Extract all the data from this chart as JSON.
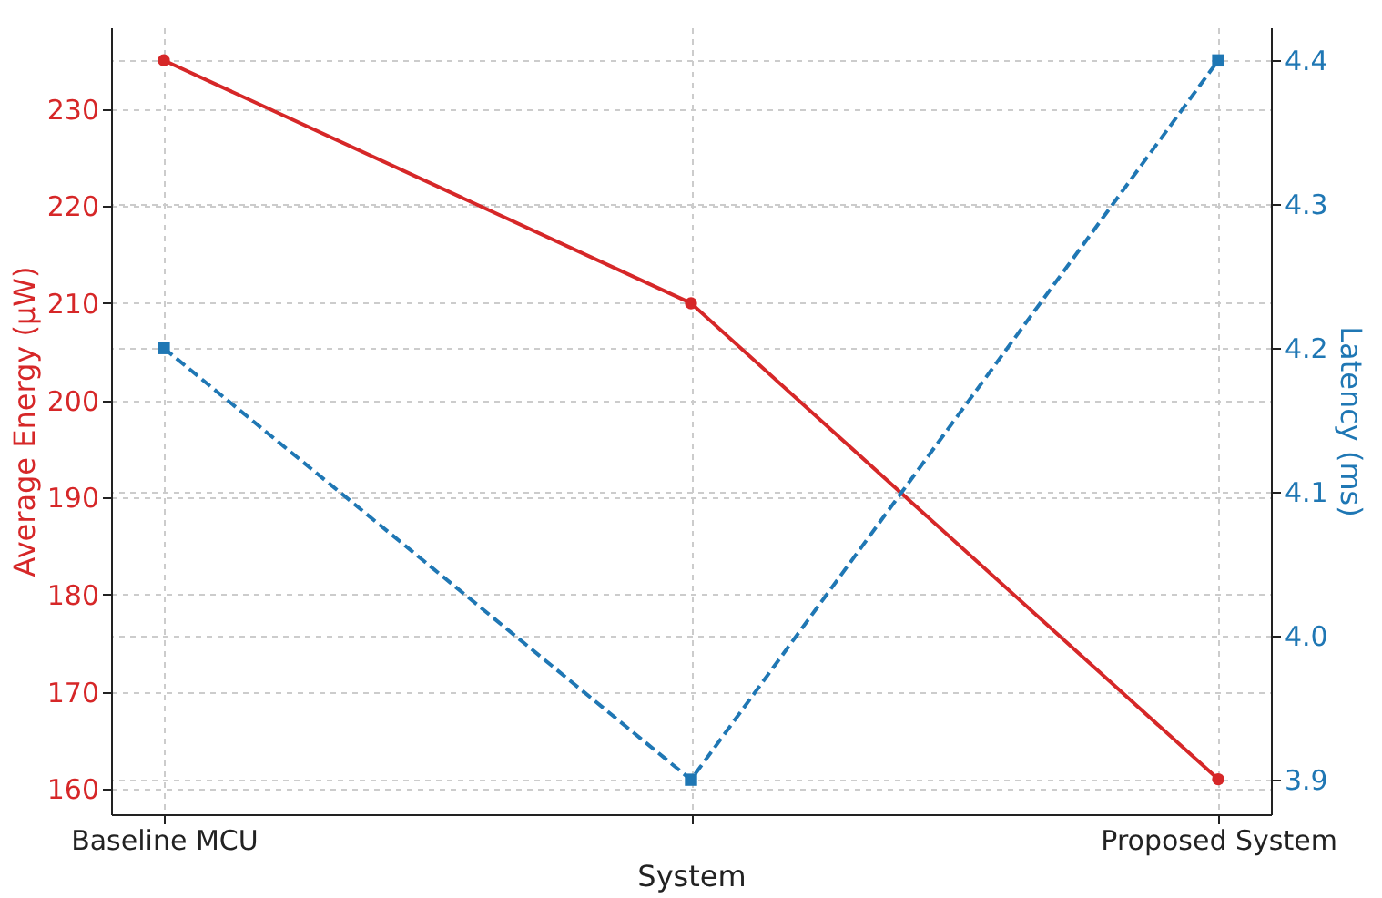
{
  "chart_data": {
    "type": "line",
    "xlabel": "System",
    "ylabel": "Average Energy (μW)",
    "y2label": "Latency (ms)",
    "categories": [
      "Baseline MCU",
      null,
      "Proposed System"
    ],
    "series": [
      {
        "color": "#d62728",
        "values": [
          235,
          210,
          161
        ],
        "marker": "circle",
        "line_style": "solid"
      },
      {
        "color": "#1f77b4",
        "values": [
          4.2,
          3.9,
          4.4
        ],
        "axis": "y2",
        "marker": "square",
        "line_style": "dashed"
      }
    ],
    "ylim": [
      157.4,
      238.4
    ],
    "yticks": [
      160,
      170,
      180,
      190,
      200,
      210,
      220,
      230
    ],
    "y2lim": [
      3.876,
      4.423
    ],
    "y2ticks": [
      3.9,
      {
        "value": 4,
        "label": "4.0"
      },
      4.1,
      4.2,
      4.3,
      4.4
    ],
    "grid": true
  }
}
